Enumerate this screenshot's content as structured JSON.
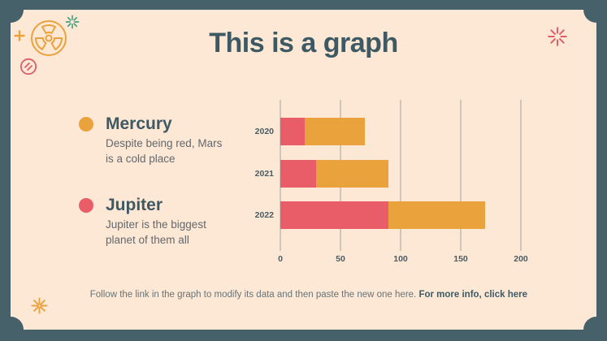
{
  "slide": {
    "title": "This is a graph",
    "footnote": {
      "text": "Follow the link in the graph to modify its data and then paste the new one here. ",
      "link_text": "For more info, click here"
    }
  },
  "legend": [
    {
      "name": "Mercury",
      "description": "Despite being red, Mars is a cold place",
      "color": "#e9a23c"
    },
    {
      "name": "Jupiter",
      "description": "Jupiter is the biggest planet of them all",
      "color": "#e85d68"
    }
  ],
  "chart_data": {
    "type": "bar",
    "orientation": "horizontal",
    "stacked": true,
    "categories": [
      "2020",
      "2021",
      "2022"
    ],
    "series": [
      {
        "name": "Jupiter",
        "color": "#e85d68",
        "values": [
          20,
          30,
          90
        ]
      },
      {
        "name": "Mercury",
        "color": "#e9a23c",
        "values": [
          50,
          60,
          80
        ]
      }
    ],
    "totals": [
      70,
      90,
      170
    ],
    "xlim": [
      0,
      200
    ],
    "xticks": [
      0,
      50,
      100,
      150,
      200
    ],
    "grid": true,
    "legend_position": "left"
  },
  "decorations": {
    "radiation_color": "#e9a23c",
    "plus_color": "#e9a23c",
    "no_sign_color": "#e05c68",
    "sparkle_green_color": "#3fa080",
    "sparkle_red_color": "#e05c68",
    "sparkle_orange_color": "#e9a23c"
  },
  "colors": {
    "frame": "#46616a",
    "card": "#fce8d5",
    "title": "#3d5a64",
    "heading": "#3d5a64",
    "body_text": "#63686d",
    "axis_text": "#4b5c63",
    "gridline": "#a5a49c",
    "footnote_text": "#6a7376",
    "footnote_link": "#3d5a64"
  }
}
